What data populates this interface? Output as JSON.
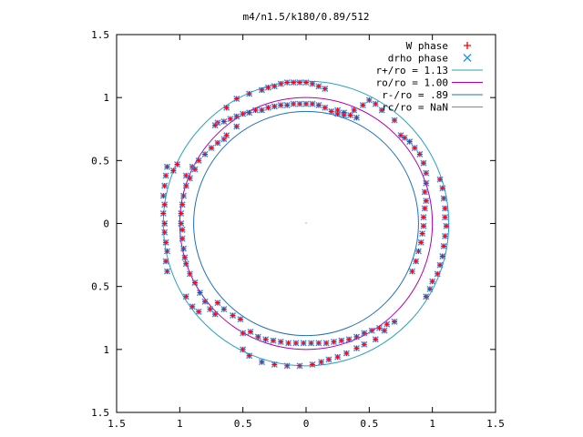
{
  "chart_data": {
    "type": "scatter",
    "title": "m4/n1.5/k180/0.89/512",
    "xlabel": "",
    "ylabel": "",
    "xlim": [
      -1.5,
      1.5
    ],
    "ylim": [
      -1.5,
      1.5
    ],
    "x_ticks": [
      {
        "value": -1.5,
        "label": "1.5"
      },
      {
        "value": -1.0,
        "label": "1"
      },
      {
        "value": -0.5,
        "label": "0.5"
      },
      {
        "value": 0.0,
        "label": "0"
      },
      {
        "value": 0.5,
        "label": "0.5"
      },
      {
        "value": 1.0,
        "label": "1"
      },
      {
        "value": 1.5,
        "label": "1.5"
      }
    ],
    "y_ticks": [
      {
        "value": 1.5,
        "label": "1.5"
      },
      {
        "value": 1.0,
        "label": "1"
      },
      {
        "value": 0.5,
        "label": "0.5"
      },
      {
        "value": 0.0,
        "label": "0"
      },
      {
        "value": -0.5,
        "label": "0.5"
      },
      {
        "value": -1.0,
        "label": "1"
      },
      {
        "value": -1.5,
        "label": "1.5"
      }
    ],
    "grid": false,
    "legend_position": "top-right",
    "series": [
      {
        "name": "W phase",
        "kind": "points",
        "marker": "plus",
        "color": "#ff0000"
      },
      {
        "name": "drho phase",
        "kind": "points",
        "marker": "cross",
        "color": "#1e90ff"
      },
      {
        "name": "r+/ro = 1.13",
        "kind": "circle",
        "radius": 1.13,
        "color": "#2aa0c8"
      },
      {
        "name": "ro/ro = 1.00",
        "kind": "circle",
        "radius": 1.0,
        "color": "#b000b0"
      },
      {
        "name": "r-/ro = .89",
        "kind": "circle",
        "radius": 0.89,
        "color": "#2070c0"
      },
      {
        "name": "rc/ro = NaN",
        "kind": "circle",
        "radius": null,
        "color": "#00c0d0"
      }
    ],
    "points": [
      {
        "x": 0.0,
        "y": 0.95
      },
      {
        "x": -0.05,
        "y": 0.95
      },
      {
        "x": -0.1,
        "y": 0.95
      },
      {
        "x": -0.15,
        "y": 0.94
      },
      {
        "x": -0.2,
        "y": 0.94
      },
      {
        "x": -0.25,
        "y": 0.93
      },
      {
        "x": -0.3,
        "y": 0.92
      },
      {
        "x": -0.35,
        "y": 0.9
      },
      {
        "x": -0.4,
        "y": 0.9
      },
      {
        "x": -0.45,
        "y": 0.88
      },
      {
        "x": -0.5,
        "y": 0.87
      },
      {
        "x": -0.55,
        "y": 0.85
      },
      {
        "x": -0.6,
        "y": 0.83
      },
      {
        "x": -0.65,
        "y": 0.81
      },
      {
        "x": -0.7,
        "y": 0.8
      },
      {
        "x": -0.72,
        "y": 0.78
      },
      {
        "x": 0.05,
        "y": 0.95
      },
      {
        "x": 0.1,
        "y": 0.94
      },
      {
        "x": 0.15,
        "y": 0.92
      },
      {
        "x": 0.2,
        "y": 0.89
      },
      {
        "x": 0.25,
        "y": 0.87
      },
      {
        "x": 0.3,
        "y": 0.86
      },
      {
        "x": -0.35,
        "y": 1.06
      },
      {
        "x": -0.3,
        "y": 1.08
      },
      {
        "x": -0.25,
        "y": 1.09
      },
      {
        "x": -0.2,
        "y": 1.11
      },
      {
        "x": -0.15,
        "y": 1.12
      },
      {
        "x": -0.1,
        "y": 1.12
      },
      {
        "x": -0.05,
        "y": 1.12
      },
      {
        "x": 0.0,
        "y": 1.12
      },
      {
        "x": 0.05,
        "y": 1.11
      },
      {
        "x": 0.1,
        "y": 1.09
      },
      {
        "x": 0.15,
        "y": 1.07
      },
      {
        "x": -0.55,
        "y": 0.99
      },
      {
        "x": -0.45,
        "y": 1.03
      },
      {
        "x": -0.63,
        "y": 0.92
      },
      {
        "x": 0.25,
        "y": 0.9
      },
      {
        "x": 0.3,
        "y": 0.88
      },
      {
        "x": 0.35,
        "y": 0.86
      },
      {
        "x": 0.4,
        "y": 0.84
      },
      {
        "x": -0.65,
        "y": 0.67
      },
      {
        "x": -0.7,
        "y": 0.64
      },
      {
        "x": -0.75,
        "y": 0.6
      },
      {
        "x": -0.8,
        "y": 0.55
      },
      {
        "x": -0.85,
        "y": 0.5
      },
      {
        "x": -0.9,
        "y": 0.45
      },
      {
        "x": -0.95,
        "y": 0.38
      },
      {
        "x": -0.55,
        "y": 0.77
      },
      {
        "x": -0.63,
        "y": 0.7
      },
      {
        "x": -1.1,
        "y": 0.45
      },
      {
        "x": -1.11,
        "y": 0.38
      },
      {
        "x": -1.12,
        "y": 0.3
      },
      {
        "x": -1.13,
        "y": 0.22
      },
      {
        "x": -1.12,
        "y": 0.15
      },
      {
        "x": -1.13,
        "y": 0.08
      },
      {
        "x": -1.12,
        "y": 0.0
      },
      {
        "x": -1.12,
        "y": -0.07
      },
      {
        "x": -1.11,
        "y": -0.15
      },
      {
        "x": -1.1,
        "y": -0.22
      },
      {
        "x": -1.11,
        "y": -0.3
      },
      {
        "x": -1.1,
        "y": -0.38
      },
      {
        "x": -1.02,
        "y": 0.47
      },
      {
        "x": -1.05,
        "y": 0.42
      },
      {
        "x": -0.95,
        "y": 0.3
      },
      {
        "x": -0.97,
        "y": 0.22
      },
      {
        "x": -0.98,
        "y": 0.15
      },
      {
        "x": -0.99,
        "y": 0.08
      },
      {
        "x": -0.99,
        "y": 0.0
      },
      {
        "x": -0.98,
        "y": -0.05
      },
      {
        "x": -0.98,
        "y": -0.12
      },
      {
        "x": -0.97,
        "y": -0.2
      },
      {
        "x": -0.96,
        "y": -0.27
      },
      {
        "x": -0.95,
        "y": -0.32
      },
      {
        "x": -0.92,
        "y": -0.4
      },
      {
        "x": -0.88,
        "y": -0.47
      },
      {
        "x": -0.84,
        "y": -0.55
      },
      {
        "x": -0.8,
        "y": -0.62
      },
      {
        "x": -0.76,
        "y": -0.68
      },
      {
        "x": -0.72,
        "y": -0.72
      },
      {
        "x": -0.92,
        "y": 0.36
      },
      {
        "x": -0.88,
        "y": 0.43
      },
      {
        "x": -0.95,
        "y": -0.58
      },
      {
        "x": -0.9,
        "y": -0.66
      },
      {
        "x": -0.85,
        "y": -0.7
      },
      {
        "x": -0.7,
        "y": -0.63
      },
      {
        "x": -0.65,
        "y": -0.68
      },
      {
        "x": -0.58,
        "y": -0.73
      },
      {
        "x": -0.52,
        "y": -0.76
      },
      {
        "x": -0.5,
        "y": -0.87
      },
      {
        "x": -0.44,
        "y": -0.86
      },
      {
        "x": -0.38,
        "y": -0.9
      },
      {
        "x": -0.32,
        "y": -0.92
      },
      {
        "x": -0.26,
        "y": -0.93
      },
      {
        "x": -0.2,
        "y": -0.94
      },
      {
        "x": -0.14,
        "y": -0.95
      },
      {
        "x": -0.08,
        "y": -0.95
      },
      {
        "x": -0.02,
        "y": -0.95
      },
      {
        "x": 0.04,
        "y": -0.95
      },
      {
        "x": 0.1,
        "y": -0.95
      },
      {
        "x": 0.16,
        "y": -0.95
      },
      {
        "x": 0.22,
        "y": -0.94
      },
      {
        "x": 0.28,
        "y": -0.93
      },
      {
        "x": 0.34,
        "y": -0.92
      },
      {
        "x": 0.4,
        "y": -0.9
      },
      {
        "x": 0.46,
        "y": -0.87
      },
      {
        "x": 0.52,
        "y": -0.85
      },
      {
        "x": 0.58,
        "y": -0.83
      },
      {
        "x": 0.64,
        "y": -0.8
      },
      {
        "x": 0.7,
        "y": -0.78
      },
      {
        "x": -0.5,
        "y": -1.0
      },
      {
        "x": -0.45,
        "y": -1.05
      },
      {
        "x": -0.35,
        "y": -1.1
      },
      {
        "x": -0.25,
        "y": -1.12
      },
      {
        "x": -0.15,
        "y": -1.13
      },
      {
        "x": -0.05,
        "y": -1.13
      },
      {
        "x": 0.05,
        "y": -1.12
      },
      {
        "x": 0.12,
        "y": -1.1
      },
      {
        "x": 0.18,
        "y": -1.08
      },
      {
        "x": 0.25,
        "y": -1.06
      },
      {
        "x": 0.32,
        "y": -1.03
      },
      {
        "x": 0.4,
        "y": -0.99
      },
      {
        "x": 0.46,
        "y": -0.96
      },
      {
        "x": 0.55,
        "y": -0.92
      },
      {
        "x": 0.62,
        "y": -0.85
      },
      {
        "x": 0.75,
        "y": 0.7
      },
      {
        "x": 0.78,
        "y": 0.68
      },
      {
        "x": 0.82,
        "y": 0.65
      },
      {
        "x": 0.86,
        "y": 0.6
      },
      {
        "x": 0.9,
        "y": 0.55
      },
      {
        "x": 0.93,
        "y": 0.48
      },
      {
        "x": 0.95,
        "y": 0.4
      },
      {
        "x": 0.95,
        "y": 0.32
      },
      {
        "x": 0.94,
        "y": 0.25
      },
      {
        "x": 0.95,
        "y": 0.18
      },
      {
        "x": 0.94,
        "y": 0.12
      },
      {
        "x": 0.93,
        "y": 0.05
      },
      {
        "x": 0.93,
        "y": -0.02
      },
      {
        "x": 0.92,
        "y": -0.08
      },
      {
        "x": 0.91,
        "y": -0.15
      },
      {
        "x": 0.89,
        "y": -0.22
      },
      {
        "x": 0.87,
        "y": -0.3
      },
      {
        "x": 0.84,
        "y": -0.38
      },
      {
        "x": 1.06,
        "y": 0.35
      },
      {
        "x": 1.08,
        "y": 0.28
      },
      {
        "x": 1.09,
        "y": 0.2
      },
      {
        "x": 1.1,
        "y": 0.12
      },
      {
        "x": 1.1,
        "y": 0.05
      },
      {
        "x": 1.11,
        "y": -0.02
      },
      {
        "x": 1.1,
        "y": -0.1
      },
      {
        "x": 1.09,
        "y": -0.18
      },
      {
        "x": 1.08,
        "y": -0.26
      },
      {
        "x": 1.06,
        "y": -0.33
      },
      {
        "x": 1.04,
        "y": -0.4
      },
      {
        "x": 1.0,
        "y": -0.46
      },
      {
        "x": 0.98,
        "y": -0.52
      },
      {
        "x": 0.95,
        "y": -0.58
      },
      {
        "x": 0.6,
        "y": 0.9
      },
      {
        "x": 0.55,
        "y": 0.95
      },
      {
        "x": 0.5,
        "y": 0.98
      },
      {
        "x": 0.45,
        "y": 0.94
      },
      {
        "x": 0.38,
        "y": 0.9
      },
      {
        "x": 0.7,
        "y": 0.82
      }
    ]
  }
}
